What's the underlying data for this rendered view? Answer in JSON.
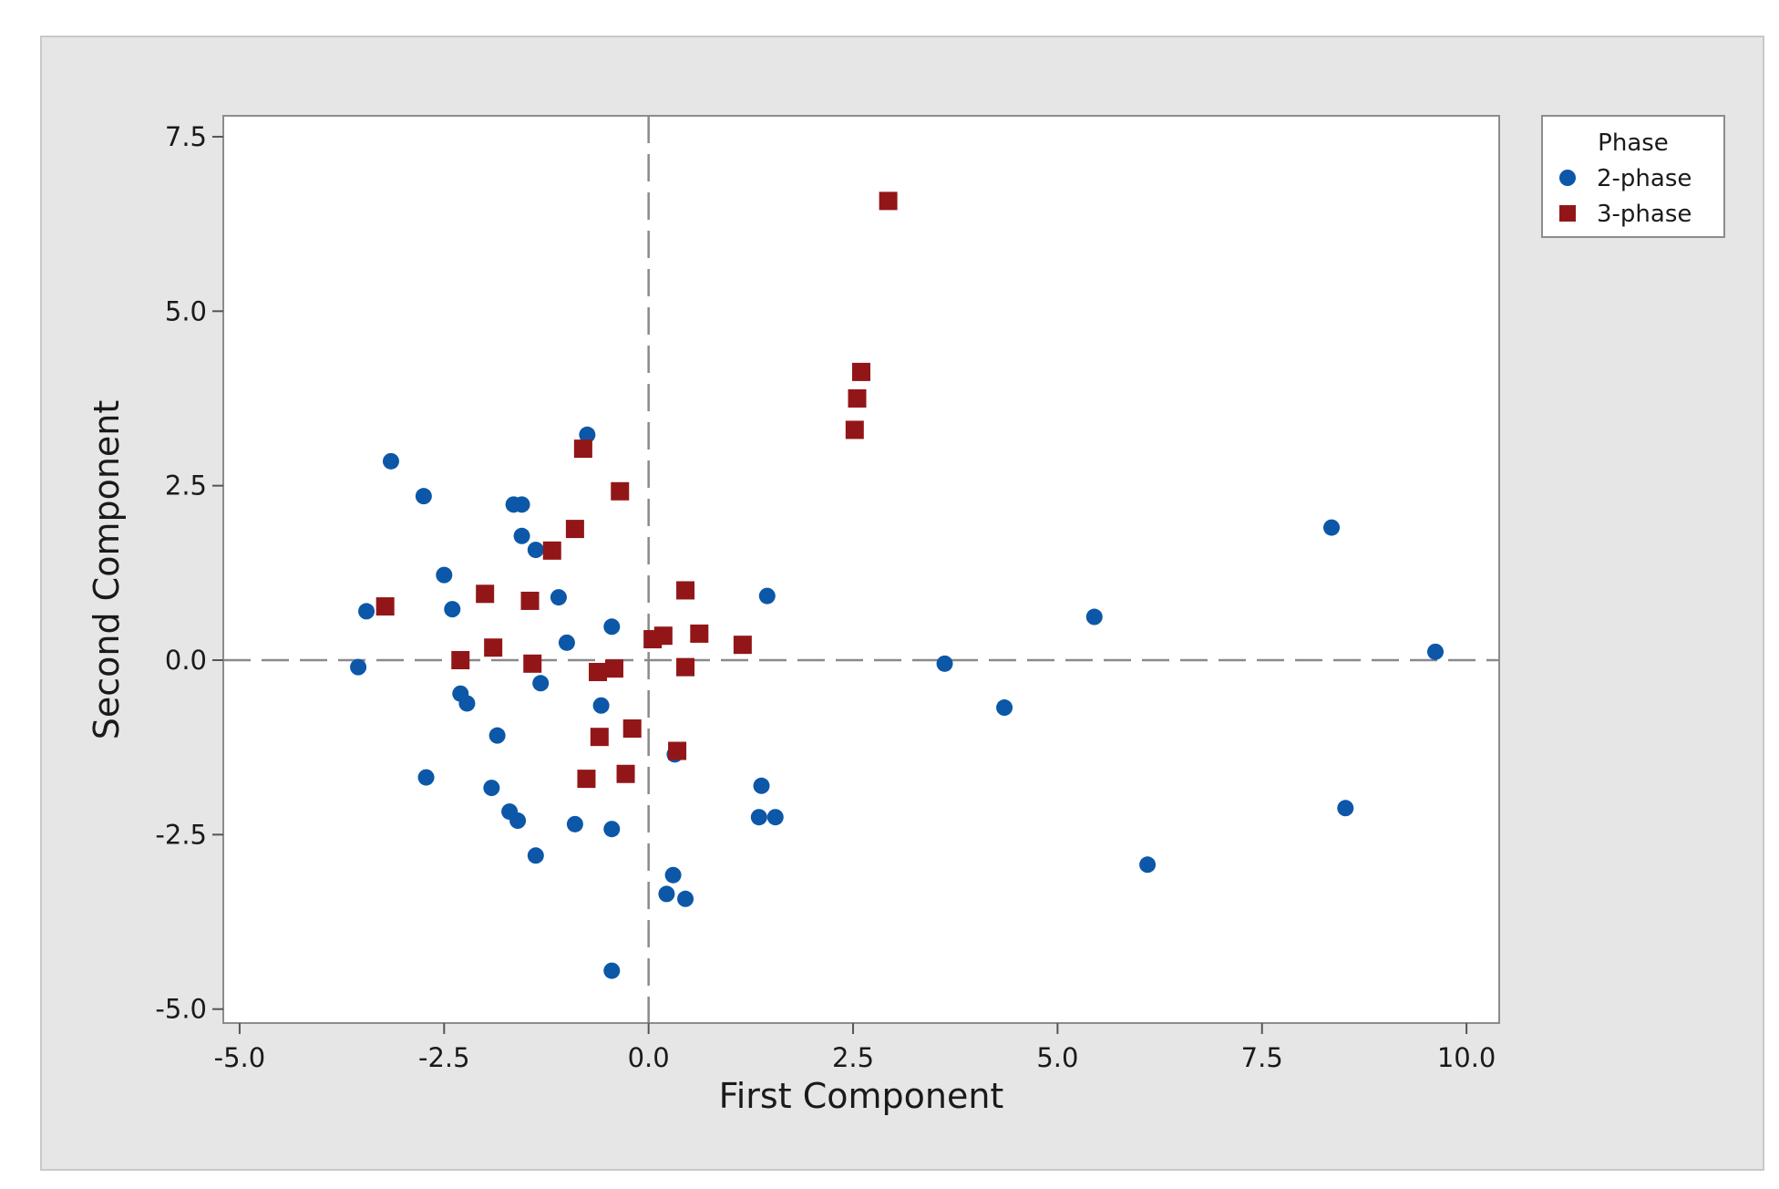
{
  "chart_data": {
    "type": "scatter",
    "title": "",
    "xlabel": "First Component",
    "ylabel": "Second Component",
    "xlim": [
      -5.2,
      10.4
    ],
    "ylim": [
      -5.2,
      7.8
    ],
    "xticks": [
      -5.0,
      -2.5,
      0.0,
      2.5,
      5.0,
      7.5,
      10.0
    ],
    "yticks": [
      -5.0,
      -2.5,
      0.0,
      2.5,
      5.0,
      7.5
    ],
    "xtick_labels": [
      "-5.0",
      "-2.5",
      "0.0",
      "2.5",
      "5.0",
      "7.5",
      "10.0"
    ],
    "ytick_labels": [
      "-5.0",
      "-2.5",
      "0.0",
      "2.5",
      "5.0",
      "7.5"
    ],
    "reference_lines": {
      "x": 0.0,
      "y": 0.0,
      "style": "dashed"
    },
    "grid": false,
    "legend": {
      "title": "Phase",
      "position": "top-right outside"
    },
    "series": [
      {
        "name": "2-phase",
        "marker": "circle",
        "color": "#0c57a8",
        "points": [
          [
            -3.55,
            -0.1
          ],
          [
            -3.45,
            0.7
          ],
          [
            -3.15,
            2.85
          ],
          [
            -2.75,
            2.35
          ],
          [
            -2.72,
            -1.68
          ],
          [
            -2.5,
            1.22
          ],
          [
            -2.4,
            0.73
          ],
          [
            -2.3,
            -0.48
          ],
          [
            -2.22,
            -0.62
          ],
          [
            -1.85,
            -1.08
          ],
          [
            -1.92,
            -1.83
          ],
          [
            -1.7,
            -2.17
          ],
          [
            -1.6,
            -2.3
          ],
          [
            -1.65,
            2.23
          ],
          [
            -1.55,
            2.23
          ],
          [
            -1.55,
            1.78
          ],
          [
            -1.38,
            1.58
          ],
          [
            -1.38,
            -2.8
          ],
          [
            -1.32,
            -0.33
          ],
          [
            -1.1,
            0.9
          ],
          [
            -1.0,
            0.25
          ],
          [
            -0.9,
            -2.35
          ],
          [
            -0.75,
            3.23
          ],
          [
            -0.58,
            -0.65
          ],
          [
            -0.45,
            -2.42
          ],
          [
            -0.45,
            -4.45
          ],
          [
            -0.45,
            0.48
          ],
          [
            0.22,
            -3.35
          ],
          [
            0.3,
            -3.08
          ],
          [
            0.32,
            -1.35
          ],
          [
            0.45,
            -3.42
          ],
          [
            1.38,
            -1.8
          ],
          [
            1.35,
            -2.25
          ],
          [
            1.45,
            0.92
          ],
          [
            1.55,
            -2.25
          ],
          [
            3.62,
            -0.05
          ],
          [
            4.35,
            -0.68
          ],
          [
            5.45,
            0.62
          ],
          [
            6.1,
            -2.93
          ],
          [
            8.35,
            1.9
          ],
          [
            8.52,
            -2.12
          ],
          [
            9.62,
            0.12
          ]
        ]
      },
      {
        "name": "3-phase",
        "marker": "square",
        "color": "#921618",
        "points": [
          [
            -3.22,
            0.77
          ],
          [
            -2.3,
            0.0
          ],
          [
            -2.0,
            0.95
          ],
          [
            -1.9,
            0.18
          ],
          [
            -1.45,
            0.85
          ],
          [
            -1.42,
            -0.05
          ],
          [
            -1.18,
            1.57
          ],
          [
            -0.9,
            1.88
          ],
          [
            -0.8,
            3.03
          ],
          [
            -0.76,
            -1.7
          ],
          [
            -0.62,
            -0.17
          ],
          [
            -0.6,
            -1.1
          ],
          [
            -0.42,
            -0.12
          ],
          [
            -0.35,
            2.42
          ],
          [
            -0.28,
            -1.63
          ],
          [
            -0.2,
            -0.98
          ],
          [
            0.05,
            0.3
          ],
          [
            0.18,
            0.35
          ],
          [
            0.35,
            -1.3
          ],
          [
            0.45,
            1.0
          ],
          [
            0.45,
            -0.1
          ],
          [
            0.62,
            0.38
          ],
          [
            1.15,
            0.22
          ],
          [
            2.52,
            3.3
          ],
          [
            2.55,
            3.75
          ],
          [
            2.6,
            4.13
          ],
          [
            2.93,
            6.58
          ]
        ]
      }
    ]
  }
}
